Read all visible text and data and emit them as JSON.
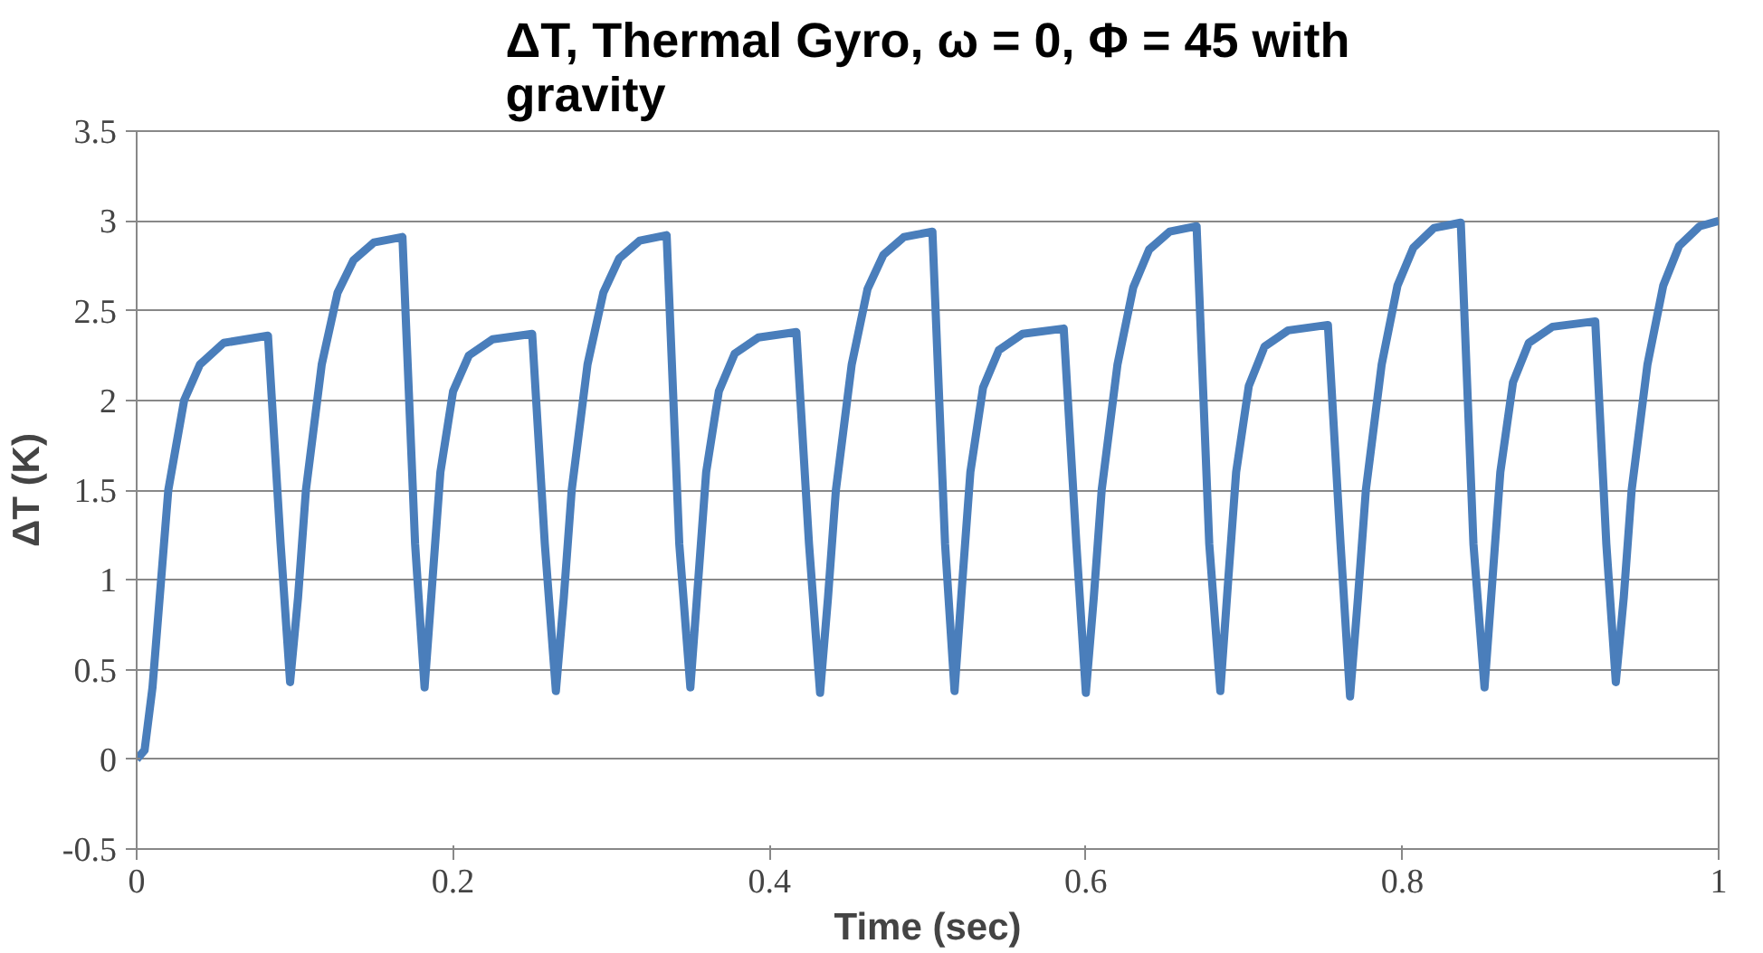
{
  "chart_data": {
    "type": "line",
    "title": "ΔT, Thermal Gyro, ω = 0, Φ = 45 with gravity",
    "xlabel": "Time (sec)",
    "ylabel": "ΔT (K)",
    "xlim": [
      0,
      1
    ],
    "ylim": [
      -0.5,
      3.5
    ],
    "xticks": [
      0,
      0.2,
      0.4,
      0.6,
      0.8,
      1
    ],
    "yticks": [
      -0.5,
      0,
      0.5,
      1,
      1.5,
      2,
      2.5,
      3,
      3.5
    ],
    "grid": "y",
    "line_style": "solid",
    "series": [
      {
        "color": "#4a7ebb",
        "x": [
          0,
          0.005,
          0.01,
          0.02,
          0.03,
          0.04,
          0.055,
          0.083,
          0.091,
          0.097,
          0.102,
          0.107,
          0.117,
          0.127,
          0.137,
          0.15,
          0.168,
          0.176,
          0.182,
          0.187,
          0.192,
          0.2,
          0.21,
          0.225,
          0.25,
          0.258,
          0.265,
          0.27,
          0.275,
          0.285,
          0.295,
          0.305,
          0.318,
          0.335,
          0.343,
          0.35,
          0.355,
          0.36,
          0.368,
          0.378,
          0.393,
          0.417,
          0.425,
          0.432,
          0.437,
          0.442,
          0.452,
          0.462,
          0.472,
          0.485,
          0.503,
          0.511,
          0.517,
          0.522,
          0.527,
          0.535,
          0.545,
          0.56,
          0.586,
          0.594,
          0.6,
          0.605,
          0.61,
          0.62,
          0.63,
          0.64,
          0.653,
          0.67,
          0.678,
          0.685,
          0.69,
          0.695,
          0.703,
          0.713,
          0.728,
          0.753,
          0.761,
          0.767,
          0.772,
          0.777,
          0.787,
          0.797,
          0.807,
          0.82,
          0.837,
          0.845,
          0.852,
          0.857,
          0.862,
          0.87,
          0.88,
          0.895,
          0.922,
          0.929,
          0.935,
          0.94,
          0.945,
          0.955,
          0.965,
          0.975,
          0.988,
          1.0
        ],
        "values": [
          0,
          0.05,
          0.4,
          1.5,
          2.0,
          2.2,
          2.32,
          2.36,
          1.2,
          0.43,
          0.9,
          1.5,
          2.2,
          2.6,
          2.78,
          2.88,
          2.91,
          1.2,
          0.4,
          1.0,
          1.6,
          2.05,
          2.25,
          2.34,
          2.37,
          1.2,
          0.38,
          0.9,
          1.5,
          2.2,
          2.6,
          2.79,
          2.89,
          2.92,
          1.2,
          0.4,
          1.0,
          1.6,
          2.05,
          2.26,
          2.35,
          2.38,
          1.2,
          0.37,
          0.9,
          1.5,
          2.2,
          2.62,
          2.81,
          2.91,
          2.94,
          1.2,
          0.38,
          1.0,
          1.6,
          2.07,
          2.28,
          2.37,
          2.4,
          1.2,
          0.37,
          0.9,
          1.5,
          2.2,
          2.63,
          2.84,
          2.94,
          2.97,
          1.2,
          0.38,
          1.0,
          1.6,
          2.08,
          2.3,
          2.39,
          2.42,
          1.2,
          0.35,
          0.9,
          1.5,
          2.2,
          2.64,
          2.85,
          2.96,
          2.99,
          1.2,
          0.4,
          1.0,
          1.6,
          2.1,
          2.32,
          2.41,
          2.44,
          1.2,
          0.43,
          0.9,
          1.5,
          2.2,
          2.64,
          2.86,
          2.97,
          3.0
        ]
      }
    ]
  }
}
